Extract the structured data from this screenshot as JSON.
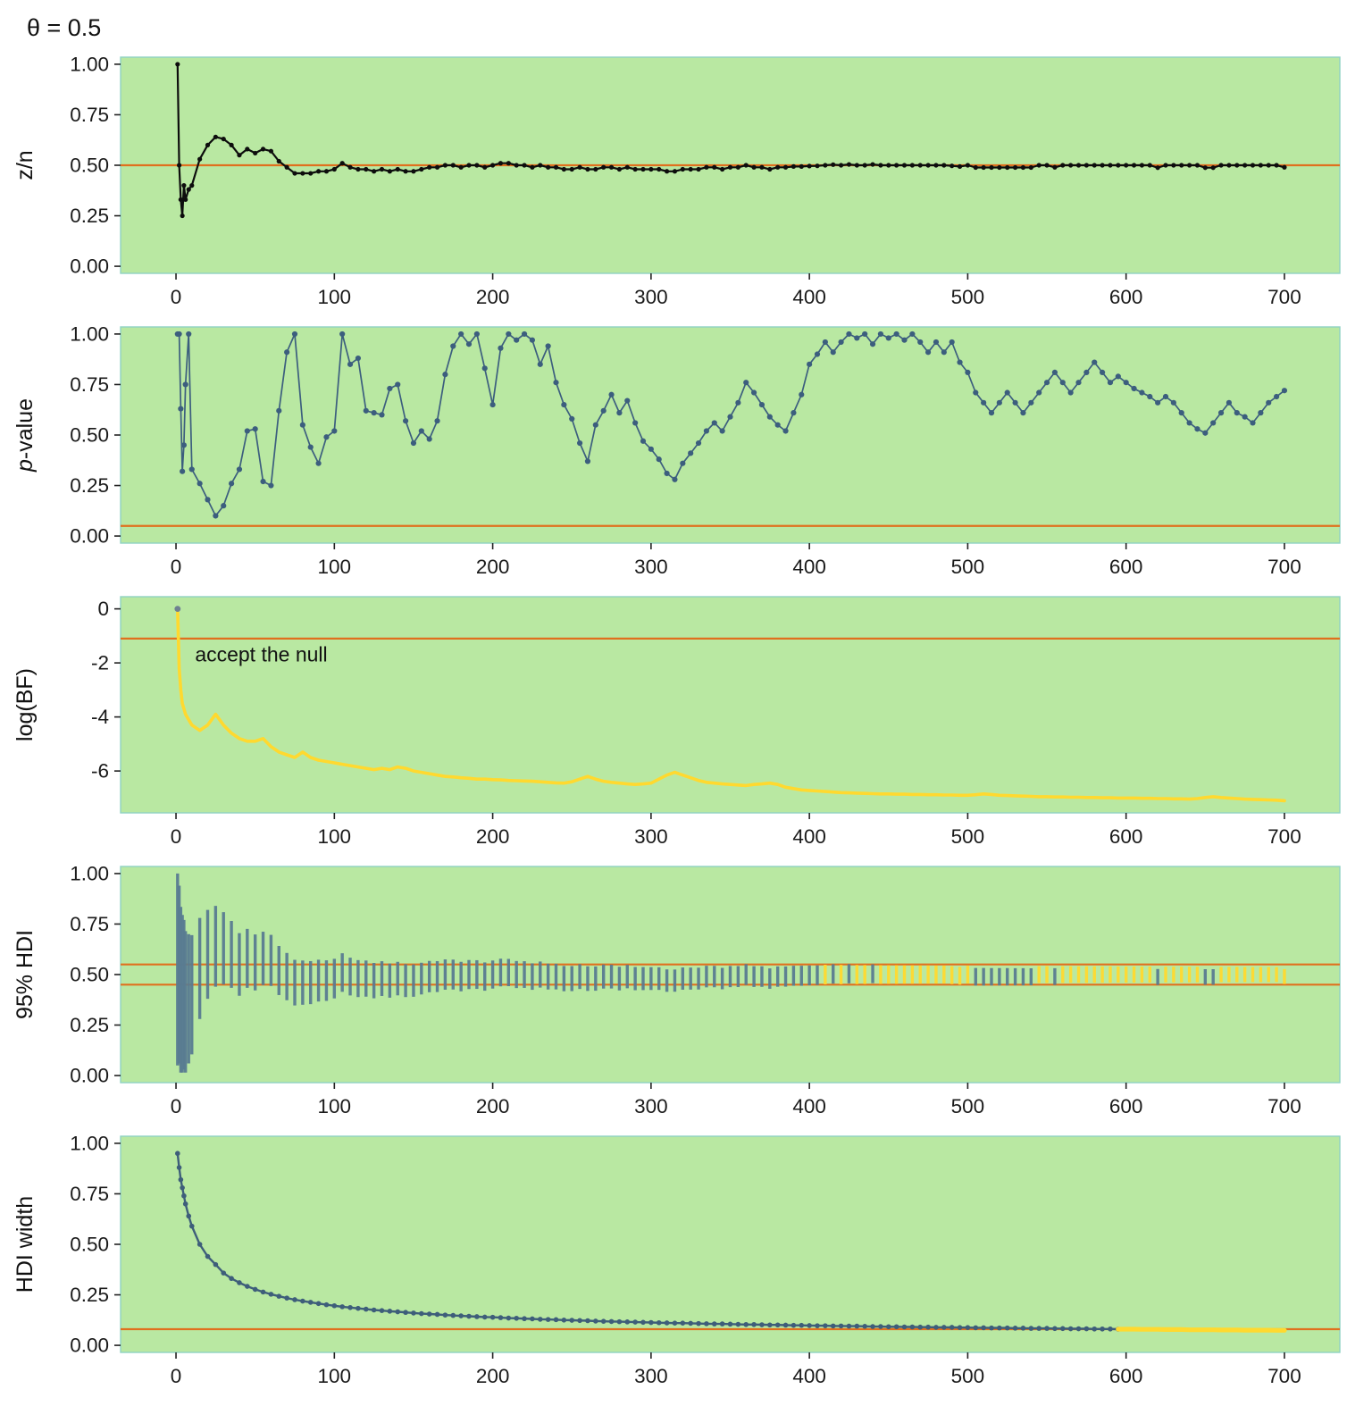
{
  "title": "θ = 0.5",
  "colors": {
    "panel_bg": "#b9e8a2",
    "panel_border": "#8fd2c3",
    "ref_line": "#e0701e",
    "zn_line": "#0d0d0d",
    "pvalue_line": "#3c5e7e",
    "bayes_factor_line": "#ffd92f",
    "hdi_bar_outside_rope": "#587b91",
    "hdi_bar_inside_rope": "#ffd92f",
    "hdi_width_line": "#3e5e7a",
    "hdi_width_passed": "#ffd92f"
  },
  "axis": {
    "x_ticks": [
      0,
      100,
      200,
      300,
      400,
      500,
      600,
      700
    ],
    "x_tick_labels": [
      "0",
      "100",
      "200",
      "300",
      "400",
      "500",
      "600",
      "700"
    ]
  },
  "shared": {
    "x": [
      1,
      2,
      3,
      4,
      5,
      6,
      8,
      10,
      15,
      20,
      25,
      30,
      35,
      40,
      45,
      50,
      55,
      60,
      65,
      70,
      75,
      80,
      85,
      90,
      95,
      100,
      105,
      110,
      115,
      120,
      125,
      130,
      135,
      140,
      145,
      150,
      155,
      160,
      165,
      170,
      175,
      180,
      185,
      190,
      195,
      200,
      205,
      210,
      215,
      220,
      225,
      230,
      235,
      240,
      245,
      250,
      255,
      260,
      265,
      270,
      275,
      280,
      285,
      290,
      295,
      300,
      305,
      310,
      315,
      320,
      325,
      330,
      335,
      340,
      345,
      350,
      355,
      360,
      365,
      370,
      375,
      380,
      385,
      390,
      395,
      400,
      405,
      410,
      415,
      420,
      425,
      430,
      435,
      440,
      445,
      450,
      455,
      460,
      465,
      470,
      475,
      480,
      485,
      490,
      495,
      500,
      505,
      510,
      515,
      520,
      525,
      530,
      535,
      540,
      545,
      550,
      555,
      560,
      565,
      570,
      575,
      580,
      585,
      590,
      595,
      600,
      605,
      610,
      615,
      620,
      625,
      630,
      635,
      640,
      645,
      650,
      655,
      660,
      665,
      670,
      675,
      680,
      685,
      690,
      695,
      700
    ],
    "zn": [
      1.0,
      0.5,
      0.33,
      0.25,
      0.4,
      0.33,
      0.38,
      0.4,
      0.53,
      0.6,
      0.64,
      0.63,
      0.6,
      0.55,
      0.58,
      0.56,
      0.58,
      0.57,
      0.52,
      0.49,
      0.46,
      0.46,
      0.46,
      0.47,
      0.47,
      0.48,
      0.51,
      0.49,
      0.48,
      0.48,
      0.47,
      0.48,
      0.47,
      0.48,
      0.47,
      0.47,
      0.48,
      0.49,
      0.49,
      0.5,
      0.5,
      0.49,
      0.5,
      0.5,
      0.49,
      0.5,
      0.51,
      0.51,
      0.5,
      0.5,
      0.49,
      0.5,
      0.49,
      0.49,
      0.48,
      0.48,
      0.49,
      0.48,
      0.48,
      0.49,
      0.49,
      0.48,
      0.49,
      0.48,
      0.48,
      0.48,
      0.48,
      0.47,
      0.47,
      0.48,
      0.48,
      0.48,
      0.49,
      0.49,
      0.48,
      0.49,
      0.49,
      0.5,
      0.49,
      0.49,
      0.48,
      0.49,
      0.49,
      0.494,
      0.494,
      0.496,
      0.497,
      0.5,
      0.503,
      0.5,
      0.504,
      0.5,
      0.5,
      0.504,
      0.5,
      0.5,
      0.5,
      0.5,
      0.5,
      0.5,
      0.5,
      0.5,
      0.5,
      0.497,
      0.494,
      0.5,
      0.489,
      0.489,
      0.489,
      0.489,
      0.489,
      0.489,
      0.489,
      0.489,
      0.5,
      0.5,
      0.49,
      0.5,
      0.5,
      0.5,
      0.5,
      0.5,
      0.5,
      0.5,
      0.5,
      0.5,
      0.5,
      0.5,
      0.5,
      0.488,
      0.5,
      0.5,
      0.5,
      0.5,
      0.5,
      0.488,
      0.488,
      0.5,
      0.5,
      0.5,
      0.5,
      0.5,
      0.5,
      0.5,
      0.5,
      0.49
    ],
    "pvalue": [
      1.0,
      1.0,
      0.63,
      0.32,
      0.45,
      0.75,
      1.0,
      0.33,
      0.26,
      0.18,
      0.1,
      0.15,
      0.26,
      0.33,
      0.52,
      0.53,
      0.27,
      0.25,
      0.62,
      0.91,
      1.0,
      0.55,
      0.44,
      0.36,
      0.49,
      0.52,
      1.0,
      0.85,
      0.88,
      0.62,
      0.61,
      0.6,
      0.73,
      0.75,
      0.57,
      0.46,
      0.52,
      0.48,
      0.57,
      0.8,
      0.94,
      1.0,
      0.95,
      1.0,
      0.83,
      0.65,
      0.93,
      1.0,
      0.97,
      1.0,
      0.97,
      0.85,
      0.94,
      0.76,
      0.65,
      0.58,
      0.46,
      0.37,
      0.55,
      0.62,
      0.7,
      0.61,
      0.67,
      0.56,
      0.47,
      0.43,
      0.38,
      0.31,
      0.28,
      0.36,
      0.41,
      0.46,
      0.52,
      0.56,
      0.52,
      0.59,
      0.66,
      0.76,
      0.71,
      0.65,
      0.59,
      0.55,
      0.52,
      0.61,
      0.7,
      0.85,
      0.9,
      0.96,
      0.91,
      0.96,
      1.0,
      0.98,
      1.0,
      0.95,
      1.0,
      0.98,
      1.0,
      0.97,
      1.0,
      0.96,
      0.91,
      0.96,
      0.91,
      0.96,
      0.86,
      0.81,
      0.71,
      0.66,
      0.61,
      0.66,
      0.71,
      0.66,
      0.61,
      0.66,
      0.71,
      0.76,
      0.81,
      0.76,
      0.71,
      0.76,
      0.81,
      0.86,
      0.81,
      0.76,
      0.79,
      0.76,
      0.73,
      0.71,
      0.69,
      0.66,
      0.69,
      0.66,
      0.61,
      0.56,
      0.53,
      0.51,
      0.56,
      0.61,
      0.66,
      0.61,
      0.59,
      0.56,
      0.61,
      0.66,
      0.69,
      0.72
    ],
    "logbf": [
      0,
      -2.2,
      -3.0,
      -3.5,
      -3.7,
      -3.9,
      -4.1,
      -4.3,
      -4.5,
      -4.3,
      -3.9,
      -4.3,
      -4.6,
      -4.8,
      -4.9,
      -4.9,
      -4.8,
      -5.1,
      -5.3,
      -5.4,
      -5.5,
      -5.3,
      -5.5,
      -5.6,
      -5.65,
      -5.7,
      -5.75,
      -5.8,
      -5.85,
      -5.9,
      -5.95,
      -5.9,
      -5.95,
      -5.85,
      -5.9,
      -6.0,
      -6.05,
      -6.1,
      -6.15,
      -6.2,
      -6.22,
      -6.25,
      -6.27,
      -6.3,
      -6.3,
      -6.32,
      -6.33,
      -6.35,
      -6.36,
      -6.37,
      -6.38,
      -6.4,
      -6.42,
      -6.44,
      -6.45,
      -6.4,
      -6.3,
      -6.2,
      -6.3,
      -6.38,
      -6.42,
      -6.45,
      -6.48,
      -6.5,
      -6.48,
      -6.45,
      -6.3,
      -6.15,
      -6.05,
      -6.15,
      -6.25,
      -6.35,
      -6.42,
      -6.45,
      -6.48,
      -6.5,
      -6.52,
      -6.54,
      -6.5,
      -6.48,
      -6.45,
      -6.5,
      -6.6,
      -6.65,
      -6.7,
      -6.72,
      -6.74,
      -6.76,
      -6.78,
      -6.8,
      -6.81,
      -6.82,
      -6.83,
      -6.84,
      -6.85,
      -6.85,
      -6.86,
      -6.86,
      -6.87,
      -6.87,
      -6.88,
      -6.88,
      -6.89,
      -6.89,
      -6.9,
      -6.9,
      -6.88,
      -6.85,
      -6.87,
      -6.9,
      -6.91,
      -6.92,
      -6.93,
      -6.94,
      -6.95,
      -6.95,
      -6.96,
      -6.96,
      -6.97,
      -6.97,
      -6.98,
      -6.98,
      -6.99,
      -6.99,
      -7.0,
      -7.0,
      -7.0,
      -7.01,
      -7.01,
      -7.02,
      -7.02,
      -7.03,
      -7.03,
      -7.04,
      -7.02,
      -6.98,
      -6.95,
      -6.98,
      -7.0,
      -7.02,
      -7.04,
      -7.05,
      -7.06,
      -7.07,
      -7.08,
      -7.1
    ],
    "hdi_width": [
      0.95,
      0.88,
      0.82,
      0.78,
      0.74,
      0.7,
      0.64,
      0.59,
      0.5,
      0.44,
      0.4,
      0.358,
      0.331,
      0.31,
      0.292,
      0.277,
      0.264,
      0.253,
      0.243,
      0.234,
      0.226,
      0.219,
      0.213,
      0.207,
      0.201,
      0.196,
      0.191,
      0.187,
      0.183,
      0.179,
      0.175,
      0.172,
      0.169,
      0.166,
      0.163,
      0.16,
      0.157,
      0.155,
      0.153,
      0.15,
      0.148,
      0.146,
      0.144,
      0.142,
      0.14,
      0.139,
      0.137,
      0.135,
      0.134,
      0.132,
      0.131,
      0.129,
      0.128,
      0.127,
      0.125,
      0.124,
      0.123,
      0.122,
      0.12,
      0.119,
      0.118,
      0.117,
      0.116,
      0.115,
      0.114,
      0.113,
      0.112,
      0.111,
      0.11,
      0.11,
      0.109,
      0.108,
      0.107,
      0.106,
      0.106,
      0.105,
      0.104,
      0.103,
      0.103,
      0.102,
      0.101,
      0.101,
      0.1,
      0.099,
      0.099,
      0.098,
      0.097,
      0.097,
      0.096,
      0.096,
      0.095,
      0.095,
      0.094,
      0.093,
      0.093,
      0.092,
      0.092,
      0.091,
      0.091,
      0.09,
      0.09,
      0.089,
      0.089,
      0.089,
      0.088,
      0.088,
      0.087,
      0.087,
      0.086,
      0.086,
      0.086,
      0.085,
      0.085,
      0.084,
      0.084,
      0.084,
      0.083,
      0.083,
      0.082,
      0.082,
      0.082,
      0.081,
      0.081,
      0.081,
      0.08,
      0.08,
      0.08,
      0.079,
      0.079,
      0.079,
      0.078,
      0.078,
      0.078,
      0.077,
      0.077,
      0.077,
      0.077,
      0.076,
      0.076,
      0.076,
      0.075,
      0.075,
      0.075,
      0.075,
      0.074,
      0.074
    ]
  },
  "chart_data": [
    {
      "name": "zn",
      "type": "line_points",
      "ylabel": [
        {
          "t": "z/n"
        }
      ],
      "x_key": "x",
      "y_key": "zn",
      "ylim": [
        -0.035,
        1.035
      ],
      "yticks": [
        0,
        0.25,
        0.5,
        0.75,
        1
      ],
      "ytick_labels": [
        "0.00",
        "0.25",
        "0.50",
        "0.75",
        "1.00"
      ],
      "hlines": [
        {
          "y": 0.5
        }
      ],
      "series_color": "#0d0d0d",
      "line_w": 2.2,
      "point_r": 2.6
    },
    {
      "name": "pvalue",
      "type": "line_points",
      "ylabel": [
        {
          "t": "p",
          "i": true
        },
        {
          "t": "-value"
        }
      ],
      "x_key": "x",
      "y_key": "pvalue",
      "ylim": [
        -0.035,
        1.035
      ],
      "yticks": [
        0,
        0.25,
        0.5,
        0.75,
        1
      ],
      "ytick_labels": [
        "0.00",
        "0.25",
        "0.50",
        "0.75",
        "1.00"
      ],
      "hlines": [
        {
          "y": 0.05
        }
      ],
      "series_color": "#3c5e7e",
      "line_w": 1.7,
      "point_r": 3.1
    },
    {
      "name": "logbf",
      "type": "line",
      "ylabel": [
        {
          "t": "log(BF)"
        }
      ],
      "x_key": "x",
      "y_key": "logbf",
      "ylim": [
        -7.55,
        0.45
      ],
      "yticks": [
        0,
        -2,
        -4,
        -6
      ],
      "ytick_labels": [
        "0",
        "-2",
        "-4",
        "-6"
      ],
      "hlines": [
        {
          "y": -1.1
        }
      ],
      "series_color": "#ffd92f",
      "line_w": 3.6,
      "first_point": {
        "color": "#6e8191",
        "r": 3.4
      },
      "annotation": {
        "text": "accept the null",
        "x": 12,
        "y": -1.95,
        "size": 23
      }
    },
    {
      "name": "hdi",
      "type": "intervals",
      "ylabel": [
        {
          "t": "95% HDI"
        }
      ],
      "x_key": "x",
      "center_key": "zn",
      "width_key": "hdi_width",
      "ylim": [
        -0.035,
        1.035
      ],
      "yticks": [
        0,
        0.25,
        0.5,
        0.75,
        1
      ],
      "ytick_labels": [
        "0.00",
        "0.25",
        "0.50",
        "0.75",
        "1.00"
      ],
      "hlines": [
        {
          "y": 0.45
        },
        {
          "y": 0.55
        }
      ],
      "rope": {
        "low": 0.45,
        "high": 0.55
      },
      "in_color": "#ffd92f",
      "out_color": "#587b91",
      "bar_w": 3.4
    },
    {
      "name": "hdi-width",
      "type": "line_points",
      "ylabel": [
        {
          "t": "HDI width"
        }
      ],
      "x_key": "x",
      "y_key": "hdi_width",
      "ylim": [
        -0.035,
        1.035
      ],
      "yticks": [
        0,
        0.25,
        0.5,
        0.75,
        1
      ],
      "ytick_labels": [
        "0.00",
        "0.25",
        "0.50",
        "0.75",
        "1.00"
      ],
      "hlines": [
        {
          "y": 0.08
        }
      ],
      "series_color": "#3e5e7a",
      "yellow_from": 595,
      "yellow_color": "#ffd92f",
      "line_w": 2.4,
      "point_r": 2.8
    }
  ]
}
